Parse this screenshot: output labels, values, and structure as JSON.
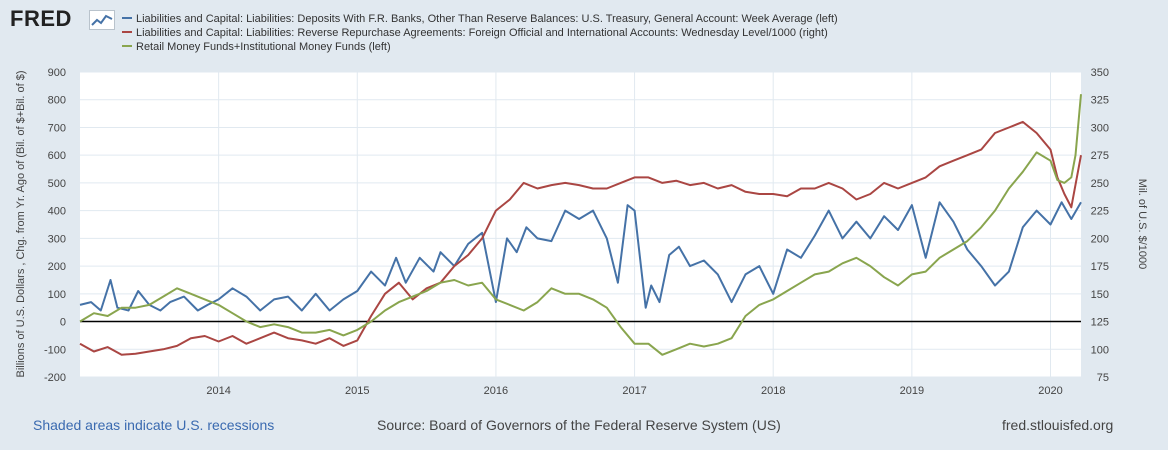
{
  "header": {
    "logo_text": "FRED",
    "logo_icon": "chart-line-icon"
  },
  "chart_data": {
    "type": "line",
    "legend": [
      {
        "label": "Liabilities and Capital: Liabilities: Deposits With F.R. Banks, Other Than Reserve Balances: U.S. Treasury, General Account: Week Average (left)",
        "color": "#4572a7"
      },
      {
        "label": "Liabilities and Capital: Liabilities: Reverse Repurchase Agreements: Foreign Official and International Accounts: Wednesday Level/1000 (right)",
        "color": "#aa4643"
      },
      {
        "label": "Retail Money Funds+Institutional Money Funds (left)",
        "color": "#89a54e"
      }
    ],
    "ylabel_left": "Billions of U.S. Dollars , Chg. from Yr. Ago of (Bil. of $+Bil. of $)",
    "ylabel_right": "Mil. of U.S. $/1000",
    "ylim_left": [
      -200,
      900
    ],
    "ylim_right": [
      75,
      350
    ],
    "yticks_left": [
      "-200",
      "-100",
      "0",
      "100",
      "200",
      "300",
      "400",
      "500",
      "600",
      "700",
      "800",
      "900"
    ],
    "yticks_right": [
      "75",
      "100",
      "125",
      "150",
      "175",
      "200",
      "225",
      "250",
      "275",
      "300",
      "325",
      "350"
    ],
    "xlim": [
      2013.0,
      2020.22
    ],
    "xticks": [
      "2014",
      "2015",
      "2016",
      "2017",
      "2018",
      "2019",
      "2020"
    ],
    "grid": true,
    "zero_line": true,
    "series": [
      {
        "name": "Treasury General Account (left)",
        "color": "#4572a7",
        "axis": "left",
        "x": [
          2013.0,
          2013.08,
          2013.15,
          2013.22,
          2013.27,
          2013.35,
          2013.42,
          2013.5,
          2013.58,
          2013.65,
          2013.75,
          2013.85,
          2013.92,
          2014.0,
          2014.1,
          2014.2,
          2014.3,
          2014.4,
          2014.5,
          2014.6,
          2014.7,
          2014.8,
          2014.9,
          2015.0,
          2015.1,
          2015.2,
          2015.28,
          2015.35,
          2015.45,
          2015.55,
          2015.6,
          2015.7,
          2015.8,
          2015.9,
          2016.0,
          2016.08,
          2016.15,
          2016.22,
          2016.3,
          2016.4,
          2016.5,
          2016.6,
          2016.7,
          2016.8,
          2016.88,
          2016.95,
          2017.0,
          2017.08,
          2017.12,
          2017.18,
          2017.25,
          2017.32,
          2017.4,
          2017.5,
          2017.6,
          2017.7,
          2017.8,
          2017.9,
          2018.0,
          2018.1,
          2018.2,
          2018.3,
          2018.4,
          2018.5,
          2018.6,
          2018.7,
          2018.8,
          2018.9,
          2019.0,
          2019.1,
          2019.2,
          2019.3,
          2019.4,
          2019.5,
          2019.6,
          2019.7,
          2019.8,
          2019.9,
          2020.0,
          2020.08,
          2020.15,
          2020.22
        ],
        "y": [
          60,
          70,
          40,
          150,
          50,
          40,
          110,
          60,
          40,
          70,
          90,
          40,
          60,
          80,
          120,
          90,
          40,
          80,
          90,
          40,
          100,
          40,
          80,
          110,
          180,
          130,
          230,
          140,
          230,
          180,
          250,
          200,
          280,
          320,
          70,
          300,
          250,
          340,
          300,
          290,
          400,
          370,
          400,
          300,
          140,
          420,
          400,
          50,
          130,
          70,
          240,
          270,
          200,
          220,
          170,
          70,
          170,
          200,
          100,
          260,
          230,
          310,
          400,
          300,
          360,
          300,
          380,
          330,
          420,
          230,
          430,
          360,
          260,
          200,
          130,
          180,
          340,
          400,
          350,
          430,
          370,
          430
        ]
      },
      {
        "name": "Foreign Official Reverse Repo (right)",
        "color": "#aa4643",
        "axis": "right",
        "x": [
          2013.0,
          2013.1,
          2013.2,
          2013.3,
          2013.4,
          2013.5,
          2013.6,
          2013.7,
          2013.8,
          2013.9,
          2014.0,
          2014.1,
          2014.2,
          2014.3,
          2014.4,
          2014.5,
          2014.6,
          2014.7,
          2014.8,
          2014.9,
          2015.0,
          2015.1,
          2015.2,
          2015.3,
          2015.4,
          2015.5,
          2015.6,
          2015.7,
          2015.8,
          2015.9,
          2016.0,
          2016.1,
          2016.2,
          2016.3,
          2016.4,
          2016.5,
          2016.6,
          2016.7,
          2016.8,
          2016.9,
          2017.0,
          2017.1,
          2017.2,
          2017.3,
          2017.4,
          2017.5,
          2017.6,
          2017.7,
          2017.8,
          2017.9,
          2018.0,
          2018.1,
          2018.2,
          2018.3,
          2018.4,
          2018.5,
          2018.6,
          2018.7,
          2018.8,
          2018.9,
          2019.0,
          2019.1,
          2019.2,
          2019.3,
          2019.4,
          2019.5,
          2019.6,
          2019.7,
          2019.8,
          2019.9,
          2020.0,
          2020.05,
          2020.1,
          2020.15,
          2020.22
        ],
        "y": [
          105,
          98,
          102,
          95,
          96,
          98,
          100,
          103,
          110,
          112,
          107,
          112,
          105,
          110,
          115,
          110,
          108,
          105,
          110,
          103,
          108,
          130,
          150,
          160,
          145,
          155,
          160,
          175,
          185,
          200,
          225,
          235,
          250,
          245,
          248,
          250,
          248,
          245,
          245,
          250,
          255,
          255,
          250,
          252,
          248,
          250,
          245,
          248,
          242,
          240,
          240,
          238,
          245,
          245,
          250,
          245,
          235,
          240,
          250,
          245,
          250,
          255,
          265,
          270,
          275,
          280,
          295,
          300,
          305,
          295,
          280,
          255,
          240,
          228,
          275
        ]
      },
      {
        "name": "Retail + Institutional Money Funds (left)",
        "color": "#89a54e",
        "axis": "left",
        "x": [
          2013.0,
          2013.1,
          2013.2,
          2013.3,
          2013.4,
          2013.5,
          2013.6,
          2013.7,
          2013.8,
          2013.9,
          2014.0,
          2014.1,
          2014.2,
          2014.3,
          2014.4,
          2014.5,
          2014.6,
          2014.7,
          2014.8,
          2014.9,
          2015.0,
          2015.1,
          2015.2,
          2015.3,
          2015.4,
          2015.5,
          2015.6,
          2015.7,
          2015.8,
          2015.9,
          2016.0,
          2016.1,
          2016.2,
          2016.3,
          2016.4,
          2016.5,
          2016.6,
          2016.7,
          2016.8,
          2016.9,
          2017.0,
          2017.1,
          2017.2,
          2017.3,
          2017.4,
          2017.5,
          2017.6,
          2017.7,
          2017.8,
          2017.9,
          2018.0,
          2018.1,
          2018.2,
          2018.3,
          2018.4,
          2018.5,
          2018.6,
          2018.7,
          2018.8,
          2018.9,
          2019.0,
          2019.1,
          2019.2,
          2019.3,
          2019.4,
          2019.5,
          2019.6,
          2019.7,
          2019.8,
          2019.9,
          2020.0,
          2020.05,
          2020.1,
          2020.15,
          2020.18,
          2020.22
        ],
        "y": [
          0,
          30,
          20,
          50,
          50,
          60,
          90,
          120,
          100,
          80,
          60,
          30,
          0,
          -20,
          -10,
          -20,
          -40,
          -40,
          -30,
          -50,
          -30,
          0,
          40,
          70,
          90,
          110,
          140,
          150,
          130,
          140,
          80,
          60,
          40,
          70,
          120,
          100,
          100,
          80,
          50,
          -20,
          -80,
          -80,
          -120,
          -100,
          -80,
          -90,
          -80,
          -60,
          20,
          60,
          80,
          110,
          140,
          170,
          180,
          210,
          230,
          200,
          160,
          130,
          170,
          180,
          230,
          260,
          290,
          340,
          400,
          480,
          540,
          610,
          580,
          510,
          500,
          520,
          600,
          820
        ]
      }
    ]
  },
  "footer": {
    "recessions_note": "Shaded areas indicate U.S. recessions",
    "source": "Source: Board of Governors of the Federal Reserve System (US)",
    "site": "fred.stlouisfed.org"
  }
}
